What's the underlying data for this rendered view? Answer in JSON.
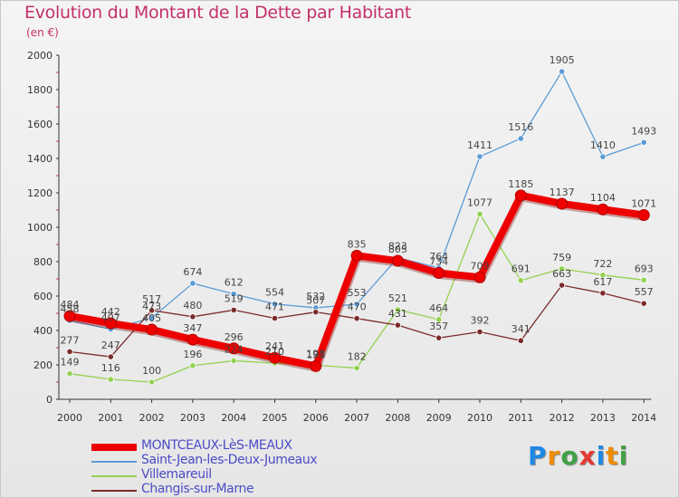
{
  "title": "Evolution du Montant de la Dette par Habitant",
  "subtitle": "(en €)",
  "logo_text": "Proxiti",
  "logo_colors": [
    "#1e88e5",
    "#f08c00",
    "#43a047",
    "#e53935",
    "#1e88e5",
    "#f08c00",
    "#43a047"
  ],
  "chart_data": {
    "type": "line",
    "title": "Evolution du Montant de la Dette par Habitant",
    "subtitle": "(en €)",
    "xlabel": "",
    "ylabel": "",
    "ylim": [
      0,
      2000
    ],
    "yticks": [
      0,
      200,
      400,
      600,
      800,
      1000,
      1200,
      1400,
      1600,
      1800,
      2000
    ],
    "grid": false,
    "legend_position": "bottom-left",
    "x": [
      "2000",
      "2001",
      "2002",
      "2003",
      "2004",
      "2005",
      "2006",
      "2007",
      "2008",
      "2009",
      "2010",
      "2011",
      "2012",
      "2013",
      "2014"
    ],
    "series": [
      {
        "name": "MONTCEAUX-LèS-MEAUX",
        "color": "#ee0000",
        "values": [
          484,
          442,
          405,
          347,
          296,
          241,
          193,
          835,
          805,
          734,
          709,
          1185,
          1137,
          1104,
          1071
        ],
        "labels": [
          "484",
          "442",
          "405",
          "347",
          "296",
          "241",
          "193",
          "835",
          "805",
          "734",
          "709",
          "1185",
          "1137",
          "1104",
          "1071"
        ]
      },
      {
        "name": "Saint-Jean-les-Deux-Jumeaux",
        "color": "#5b9bd5",
        "values": [
          458,
          407,
          473,
          674,
          612,
          554,
          532,
          553,
          823,
          764,
          1411,
          1516,
          1905,
          1410,
          1493
        ],
        "labels": [
          "458",
          "407",
          "473",
          "674",
          "612",
          "554",
          "532",
          "553",
          "823",
          "764",
          "1411",
          "1516",
          "1905",
          "1410",
          "1493"
        ]
      },
      {
        "name": "Villemareuil",
        "color": "#93d150",
        "values": [
          149,
          116,
          100,
          196,
          224,
          210,
          198,
          182,
          521,
          464,
          1077,
          691,
          759,
          722,
          693
        ],
        "labels": [
          "149",
          "116",
          "100",
          "196",
          "224",
          "210",
          "198",
          "182",
          "521",
          "464",
          "1077",
          "691",
          "759",
          "722",
          "693"
        ]
      },
      {
        "name": "Changis-sur-Marne",
        "color": "#7b2b2b",
        "values": [
          277,
          247,
          517,
          480,
          519,
          471,
          507,
          470,
          431,
          357,
          392,
          341,
          663,
          617,
          557
        ],
        "labels": [
          "277",
          "247",
          "517",
          "480",
          "519",
          "471",
          "507",
          "470",
          "431",
          "357",
          "392",
          "341",
          "663",
          "617",
          "557"
        ]
      }
    ]
  }
}
